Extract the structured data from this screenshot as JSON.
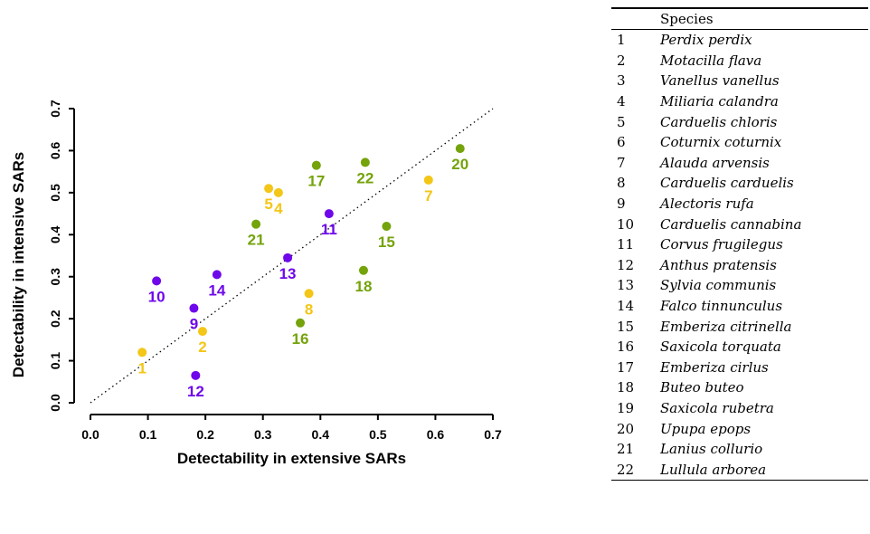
{
  "chart_data": {
    "type": "scatter",
    "xlabel": "Detectability in extensive SARs",
    "ylabel": "Detectability in intensive SARs",
    "xlim": [
      0.0,
      0.7
    ],
    "ylim": [
      0.0,
      0.7
    ],
    "xticks": [
      "0.0",
      "0.1",
      "0.2",
      "0.3",
      "0.4",
      "0.5",
      "0.6",
      "0.7"
    ],
    "yticks": [
      "0.0",
      "0.1",
      "0.2",
      "0.3",
      "0.4",
      "0.5",
      "0.6",
      "0.7"
    ],
    "reference_line": "y = x (dotted)",
    "grid": false,
    "colors": {
      "yellow": "#f3c617",
      "green": "#74a30b",
      "purple": "#6e08ea"
    },
    "points": [
      {
        "label": "1",
        "x": 0.09,
        "y": 0.12,
        "color": "yellow"
      },
      {
        "label": "2",
        "x": 0.195,
        "y": 0.17,
        "color": "yellow"
      },
      {
        "label": "4",
        "x": 0.327,
        "y": 0.5,
        "color": "yellow"
      },
      {
        "label": "5",
        "x": 0.31,
        "y": 0.51,
        "color": "yellow"
      },
      {
        "label": "7",
        "x": 0.588,
        "y": 0.53,
        "color": "yellow"
      },
      {
        "label": "8",
        "x": 0.38,
        "y": 0.26,
        "color": "yellow"
      },
      {
        "label": "9",
        "x": 0.18,
        "y": 0.225,
        "color": "purple"
      },
      {
        "label": "10",
        "x": 0.115,
        "y": 0.29,
        "color": "purple"
      },
      {
        "label": "11",
        "x": 0.415,
        "y": 0.45,
        "color": "purple"
      },
      {
        "label": "12",
        "x": 0.183,
        "y": 0.065,
        "color": "purple"
      },
      {
        "label": "13",
        "x": 0.343,
        "y": 0.345,
        "color": "purple"
      },
      {
        "label": "14",
        "x": 0.22,
        "y": 0.305,
        "color": "purple"
      },
      {
        "label": "15",
        "x": 0.515,
        "y": 0.42,
        "color": "green"
      },
      {
        "label": "16",
        "x": 0.365,
        "y": 0.19,
        "color": "green"
      },
      {
        "label": "17",
        "x": 0.393,
        "y": 0.565,
        "color": "green"
      },
      {
        "label": "18",
        "x": 0.475,
        "y": 0.315,
        "color": "green"
      },
      {
        "label": "20",
        "x": 0.643,
        "y": 0.605,
        "color": "green"
      },
      {
        "label": "21",
        "x": 0.288,
        "y": 0.425,
        "color": "green"
      },
      {
        "label": "22",
        "x": 0.478,
        "y": 0.572,
        "color": "green"
      }
    ]
  },
  "species_table": {
    "header": [
      "",
      "Species"
    ],
    "rows": [
      {
        "num": "1",
        "name": "Perdix perdix"
      },
      {
        "num": "2",
        "name": "Motacilla flava"
      },
      {
        "num": "3",
        "name": "Vanellus vanellus"
      },
      {
        "num": "4",
        "name": "Miliaria calandra"
      },
      {
        "num": "5",
        "name": "Carduelis chloris"
      },
      {
        "num": "6",
        "name": "Coturnix coturnix"
      },
      {
        "num": "7",
        "name": "Alauda arvensis"
      },
      {
        "num": "8",
        "name": "Carduelis carduelis"
      },
      {
        "num": "9",
        "name": "Alectoris rufa"
      },
      {
        "num": "10",
        "name": "Carduelis cannabina"
      },
      {
        "num": "11",
        "name": "Corvus frugilegus"
      },
      {
        "num": "12",
        "name": "Anthus pratensis"
      },
      {
        "num": "13",
        "name": "Sylvia communis"
      },
      {
        "num": "14",
        "name": "Falco tinnunculus"
      },
      {
        "num": "15",
        "name": "Emberiza citrinella"
      },
      {
        "num": "16",
        "name": "Saxicola torquata"
      },
      {
        "num": "17",
        "name": "Emberiza cirlus"
      },
      {
        "num": "18",
        "name": "Buteo buteo"
      },
      {
        "num": "19",
        "name": "Saxicola rubetra"
      },
      {
        "num": "20",
        "name": "Upupa epops"
      },
      {
        "num": "21",
        "name": "Lanius collurio"
      },
      {
        "num": "22",
        "name": "Lullula arborea"
      }
    ]
  }
}
